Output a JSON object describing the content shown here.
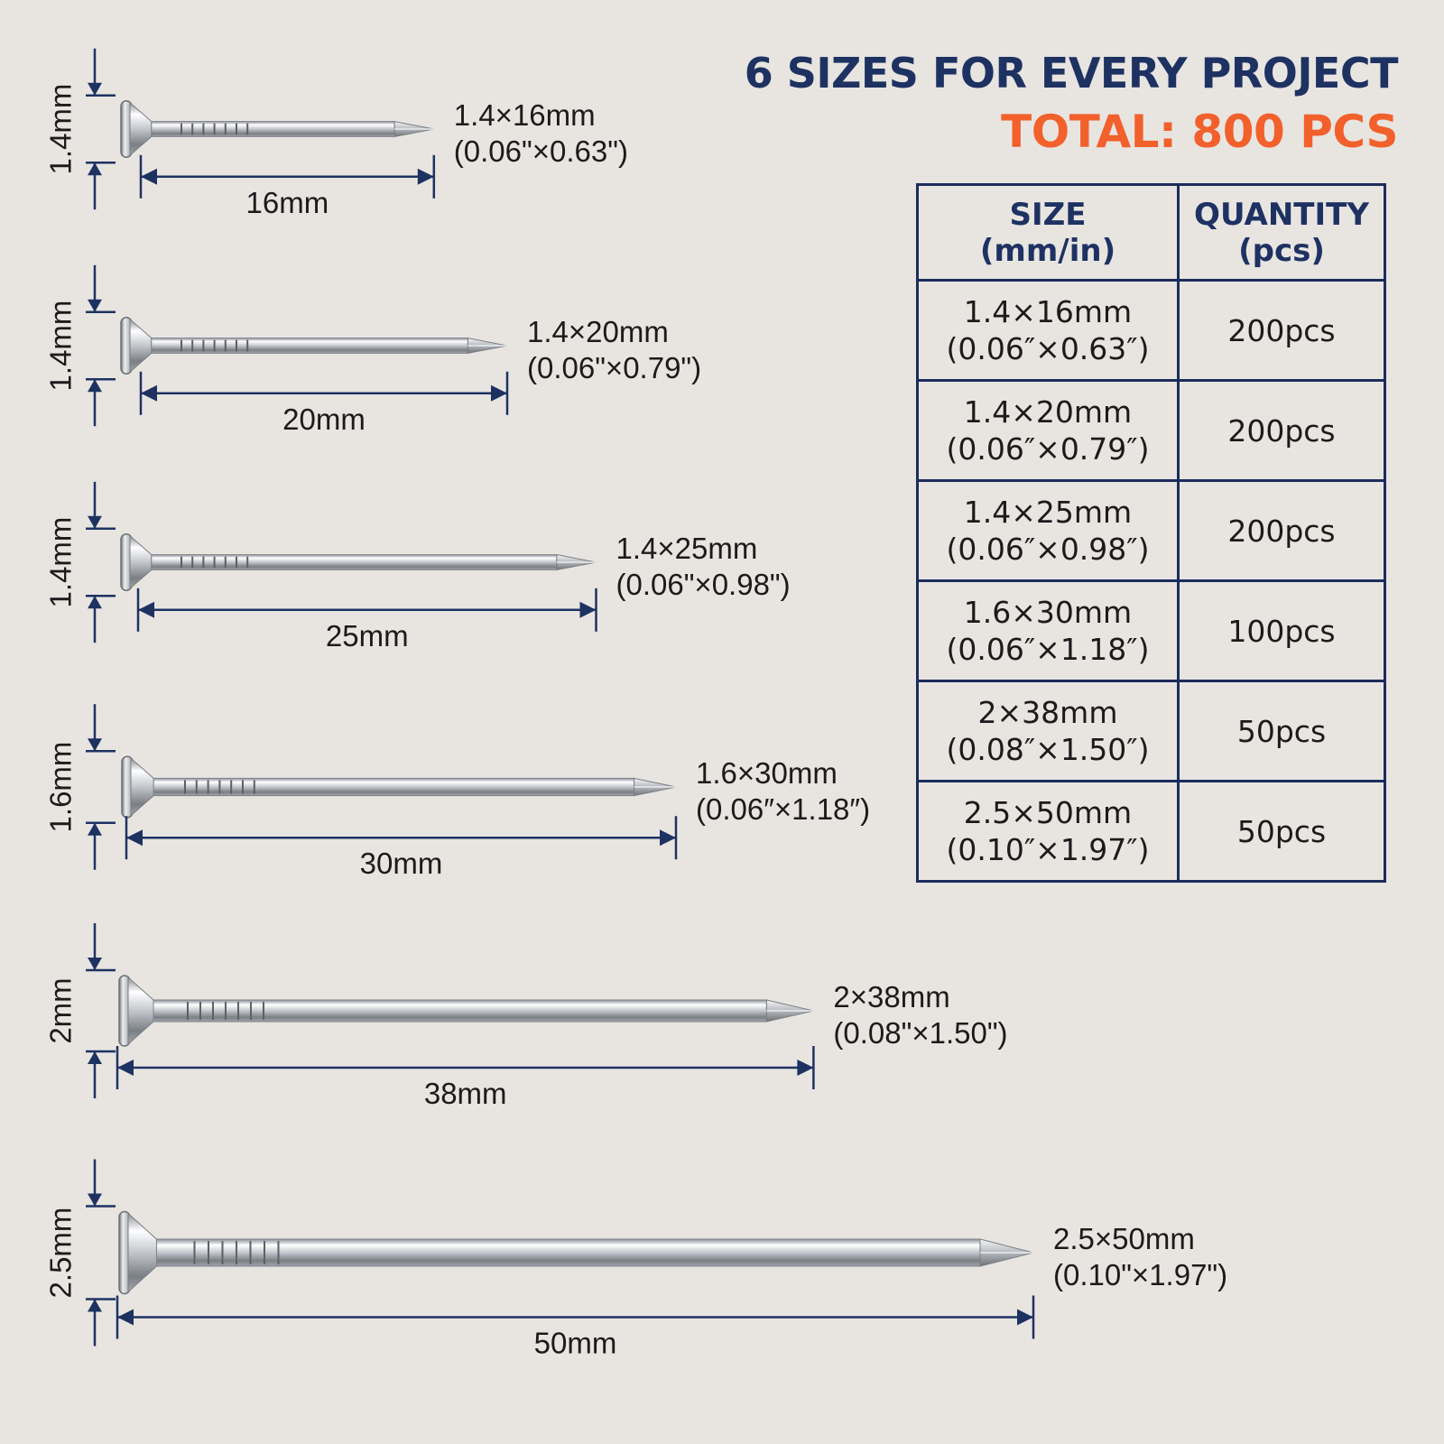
{
  "heading": {
    "line1": "6 SIZES FOR EVERY PROJECT",
    "line2": "TOTAL: 800 PCS"
  },
  "colors": {
    "navy": "#1e3262",
    "orange": "#f2602c",
    "background": "#e8e5e1",
    "steel": "#b9bcc2"
  },
  "table": {
    "headers": [
      {
        "line1": "SIZE",
        "line2": "(mm/in)"
      },
      {
        "line1": "QUANTITY",
        "line2": "(pcs)"
      }
    ],
    "rows": [
      {
        "size_mm": "1.4×16mm",
        "size_in": "(0.06″×0.63″)",
        "qty": "200pcs"
      },
      {
        "size_mm": "1.4×20mm",
        "size_in": "(0.06″×0.79″)",
        "qty": "200pcs"
      },
      {
        "size_mm": "1.4×25mm",
        "size_in": "(0.06″×0.98″)",
        "qty": "200pcs"
      },
      {
        "size_mm": "1.6×30mm",
        "size_in": "(0.06″×1.18″)",
        "qty": "100pcs"
      },
      {
        "size_mm": "2×38mm",
        "size_in": "(0.08″×1.50″)",
        "qty": "50pcs"
      },
      {
        "size_mm": "2.5×50mm",
        "size_in": "(0.10″×1.97″)",
        "qty": "50pcs"
      }
    ]
  },
  "nails": [
    {
      "label_mm": "1.4×16mm",
      "label_in": "(0.06\"×0.63\")",
      "length_label": "16mm",
      "diameter_label": "1.4mm",
      "length_mm": 16,
      "diameter_mm": 1.4
    },
    {
      "label_mm": "1.4×20mm",
      "label_in": "(0.06\"×0.79\")",
      "length_label": "20mm",
      "diameter_label": "1.4mm",
      "length_mm": 20,
      "diameter_mm": 1.4
    },
    {
      "label_mm": "1.4×25mm",
      "label_in": "(0.06\"×0.98\")",
      "length_label": "25mm",
      "diameter_label": "1.4mm",
      "length_mm": 25,
      "diameter_mm": 1.4
    },
    {
      "label_mm": "1.6×30mm",
      "label_in": "(0.06″×1.18″)",
      "length_label": "30mm",
      "diameter_label": "1.6mm",
      "length_mm": 30,
      "diameter_mm": 1.6
    },
    {
      "label_mm": "2×38mm",
      "label_in": "(0.08\"×1.50\")",
      "length_label": "38mm",
      "diameter_label": "2mm",
      "length_mm": 38,
      "diameter_mm": 2
    },
    {
      "label_mm": "2.5×50mm",
      "label_in": "(0.10\"×1.97\")",
      "length_label": "50mm",
      "diameter_label": "2.5mm",
      "length_mm": 50,
      "diameter_mm": 2.5
    }
  ]
}
